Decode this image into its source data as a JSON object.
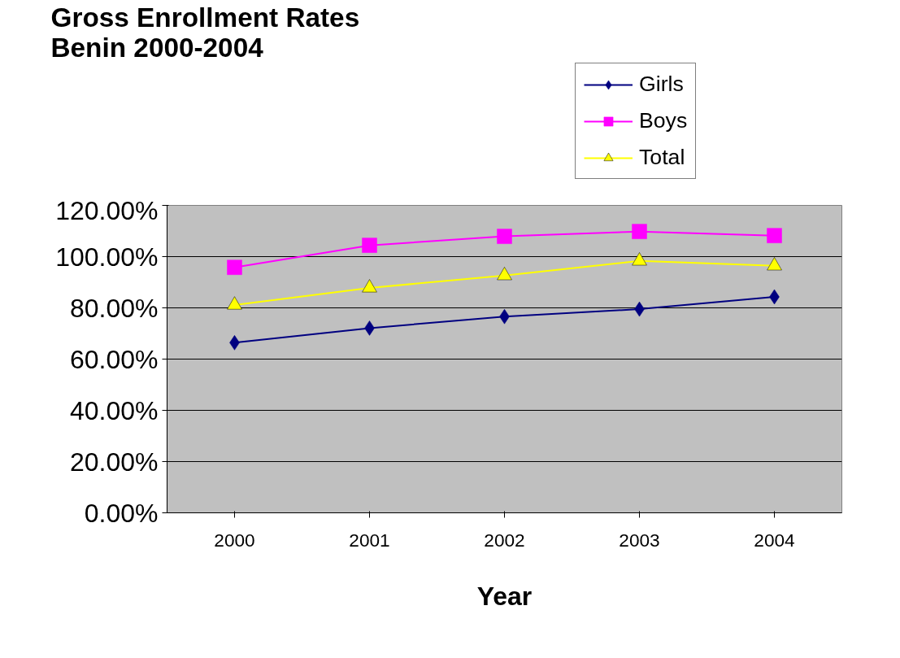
{
  "chart_data": {
    "type": "line",
    "title": "Gross Enrollment Rates\nBenin 2000-2004",
    "xlabel": "Year",
    "categories": [
      "2000",
      "2001",
      "2002",
      "2003",
      "2004"
    ],
    "series": [
      {
        "name": "Girls",
        "color": "#000080",
        "marker": "diamond",
        "values": [
          66.4,
          72.1,
          76.6,
          79.5,
          84.3
        ]
      },
      {
        "name": "Boys",
        "color": "#ff00ff",
        "marker": "square",
        "values": [
          95.8,
          104.4,
          107.9,
          109.8,
          108.2
        ]
      },
      {
        "name": "Total",
        "color": "#ffff00",
        "marker": "triangle",
        "values": [
          81.1,
          87.8,
          92.6,
          98.3,
          96.4
        ]
      }
    ],
    "ylim": [
      0,
      120
    ],
    "yticks": [
      {
        "value": 0,
        "label": "0.00%"
      },
      {
        "value": 20,
        "label": "20.00%"
      },
      {
        "value": 40,
        "label": "40.00%"
      },
      {
        "value": 60,
        "label": "60.00%"
      },
      {
        "value": 80,
        "label": "80.00%"
      },
      {
        "value": 100,
        "label": "100.00%"
      },
      {
        "value": 120,
        "label": "120.00%"
      }
    ],
    "grid": "y",
    "legend": "top right"
  }
}
